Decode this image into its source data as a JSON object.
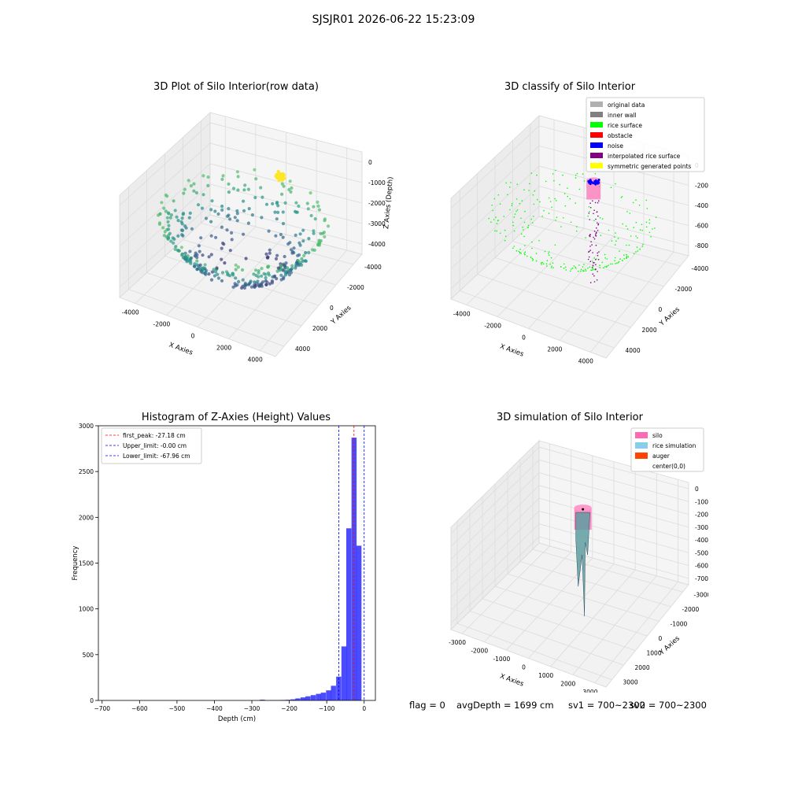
{
  "suptitle": "SJSJR01 2026-06-22 15:23:09",
  "footer": {
    "flag": "flag = 0",
    "avg_depth": "avgDepth = 1699 cm",
    "sv1": "sv1 = 700~2300",
    "sv2": "sv2 = 700~2300"
  },
  "chart_data": [
    {
      "type": "scatter",
      "projection": "3d",
      "title": "3D Plot of Silo Interior(row data)",
      "xlabel": "X Axies",
      "ylabel": "Y Axies",
      "zlabel": "Z Axies (Depth)",
      "x_ticks": [
        "-4000",
        "-2000",
        "0",
        "2000",
        "4000"
      ],
      "y_ticks": [
        "-4000",
        "-2000",
        "0",
        "2000",
        "4000"
      ],
      "z_ticks": [
        "0",
        "-1000",
        "-2000",
        "-3000",
        "-4000"
      ],
      "xlim": [
        -4500,
        4500
      ],
      "ylim": [
        -4500,
        4500
      ],
      "zlim": [
        -4500,
        0
      ],
      "colormap": "viridis",
      "point_count": 400
    },
    {
      "type": "scatter",
      "projection": "3d",
      "title": "3D classify of Silo Interior",
      "xlabel": "X Axies",
      "ylabel": "Y Axies",
      "zlabel": "Z Axies (Depth)",
      "x_ticks": [
        "-4000",
        "-2000",
        "0",
        "2000",
        "4000"
      ],
      "y_ticks": [
        "-4000",
        "-2000",
        "0",
        "2000",
        "4000"
      ],
      "z_ticks": [
        "0",
        "-2000",
        "-4000",
        "-6000",
        "-8000"
      ],
      "zlim": [
        -9000,
        0
      ],
      "legend_position": "top-right",
      "legend": [
        {
          "label": "original data",
          "color": "#b0b0b0"
        },
        {
          "label": "inner wall",
          "color": "#808080"
        },
        {
          "label": "rice surface",
          "color": "#00ff00"
        },
        {
          "label": "obstacle",
          "color": "#ff0000"
        },
        {
          "label": "noise",
          "color": "#0000ff"
        },
        {
          "label": "interpolated rice surface",
          "color": "#800080"
        },
        {
          "label": "symmetric generated points",
          "color": "#ffff00"
        }
      ]
    },
    {
      "type": "bar",
      "title": "Histogram of Z-Axies (Height) Values",
      "xlabel": "Depth (cm)",
      "ylabel": "Frequency",
      "xlim": [
        -710,
        30
      ],
      "ylim": [
        0,
        3000
      ],
      "x_ticks": [
        -700,
        -600,
        -500,
        -400,
        -300,
        -200,
        -100,
        0
      ],
      "y_ticks": [
        0,
        500,
        1000,
        1500,
        2000,
        2500,
        3000
      ],
      "bar_color": "#0000ff",
      "bin_width": 13.6,
      "bins": [
        {
          "x": -272,
          "value": 8
        },
        {
          "x": -258,
          "value": 2
        },
        {
          "x": -245,
          "value": 3
        },
        {
          "x": -231,
          "value": 4
        },
        {
          "x": -218,
          "value": 5
        },
        {
          "x": -204,
          "value": 7
        },
        {
          "x": -190,
          "value": 12
        },
        {
          "x": -177,
          "value": 22
        },
        {
          "x": -163,
          "value": 33
        },
        {
          "x": -150,
          "value": 45
        },
        {
          "x": -136,
          "value": 58
        },
        {
          "x": -122,
          "value": 72
        },
        {
          "x": -109,
          "value": 85
        },
        {
          "x": -95,
          "value": 110
        },
        {
          "x": -82,
          "value": 160
        },
        {
          "x": -68,
          "value": 260
        },
        {
          "x": -54,
          "value": 590
        },
        {
          "x": -41,
          "value": 1880
        },
        {
          "x": -27,
          "value": 2870
        },
        {
          "x": -14,
          "value": 1690
        }
      ],
      "lines": [
        {
          "label": "first_peak: -27.18 cm",
          "x": -27.18,
          "color": "#ff0000"
        },
        {
          "label": "Upper_limit: -0.00 cm",
          "x": 0,
          "color": "#0000ff"
        },
        {
          "label": "Lower_limit: -67.96 cm",
          "x": -67.96,
          "color": "#0000ff"
        }
      ],
      "legend_position": "top-left"
    },
    {
      "type": "surface",
      "projection": "3d",
      "title": "3D simulation of Silo Interior",
      "xlabel": "X Axies",
      "ylabel": "Y Axies",
      "zlabel": "Z Axies (Depth)",
      "x_ticks": [
        "-3000",
        "-2000",
        "-1000",
        "0",
        "1000",
        "2000",
        "3000"
      ],
      "y_ticks": [
        "-3000",
        "-2000",
        "-1000",
        "0",
        "1000",
        "2000",
        "3000"
      ],
      "z_ticks": [
        "0",
        "-1000",
        "-2000",
        "-3000",
        "-4000",
        "-5000",
        "-6000",
        "-7000"
      ],
      "legend_position": "top-right",
      "legend": [
        {
          "label": "silo",
          "color": "#ff69b4"
        },
        {
          "label": "rice simulation",
          "color": "#87ceeb"
        },
        {
          "label": "auger",
          "color": "#ff4500"
        },
        {
          "label": "center(0,0)",
          "color": ""
        }
      ]
    }
  ]
}
